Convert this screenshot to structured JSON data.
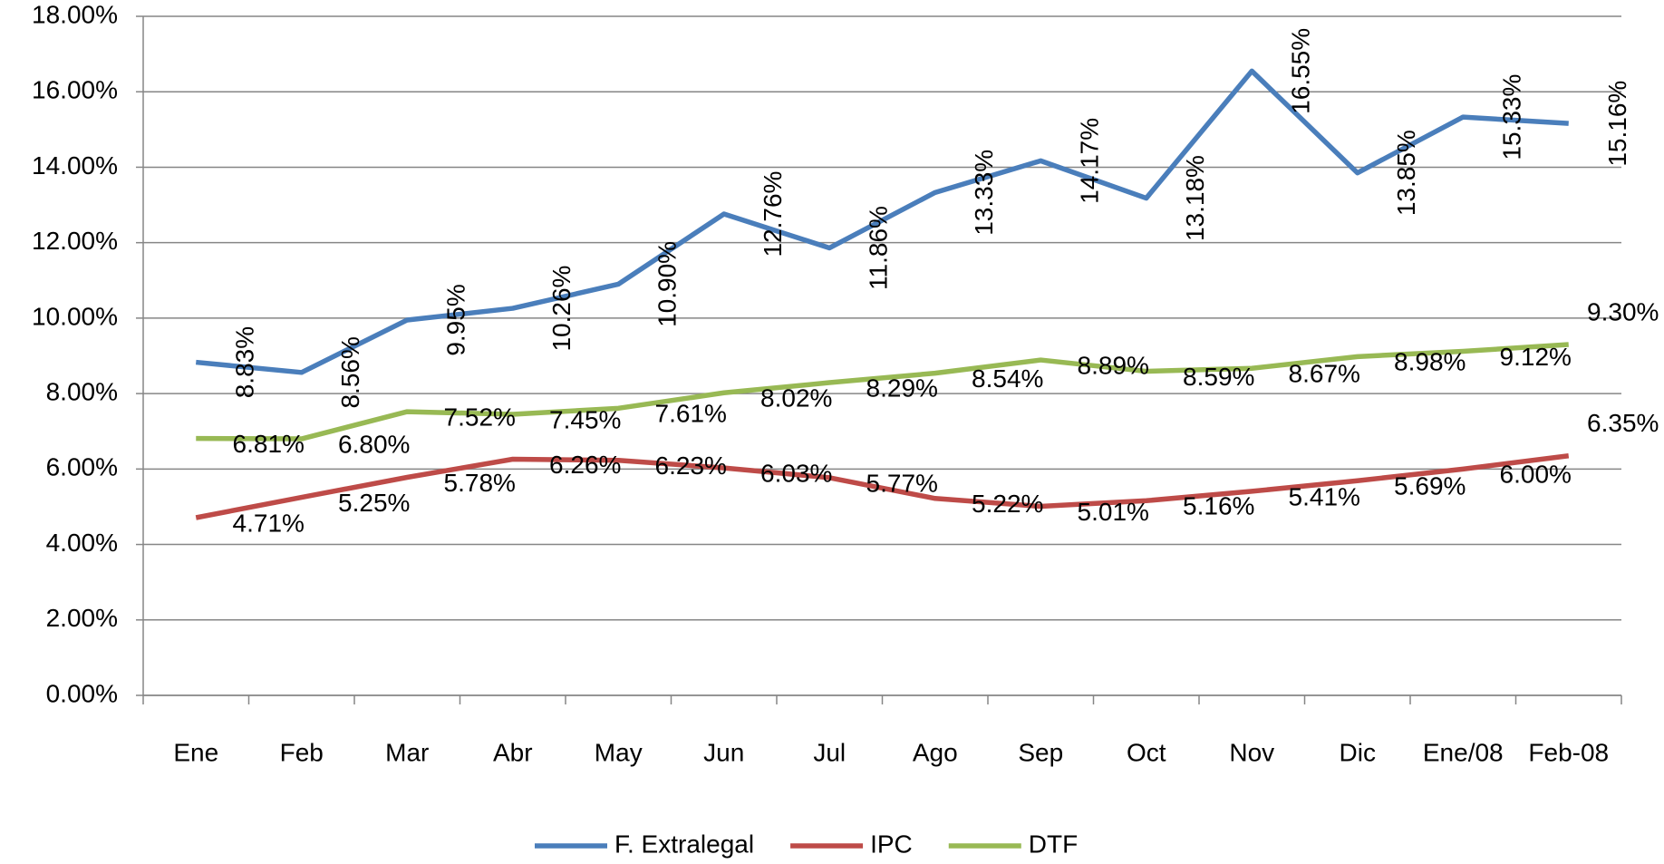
{
  "chart_data": {
    "type": "line",
    "categories": [
      "Ene",
      "Feb",
      "Mar",
      "Abr",
      "May",
      "Jun",
      "Jul",
      "Ago",
      "Sep",
      "Oct",
      "Nov",
      "Dic",
      "Ene/08",
      "Feb-08"
    ],
    "series": [
      {
        "name": "F. Extralegal",
        "color": "#4a7ebb",
        "values": [
          8.83,
          8.56,
          9.95,
          10.26,
          10.9,
          12.76,
          11.86,
          13.33,
          14.17,
          13.18,
          16.55,
          13.85,
          15.33,
          15.16
        ],
        "value_labels": [
          "8.83%",
          "8.56%",
          "9.95%",
          "10.26%",
          "10.90%",
          "12.76%",
          "11.86%",
          "13.33%",
          "14.17%",
          "13.18%",
          "16.55%",
          "13.85%",
          "15.33%",
          "15.16%"
        ]
      },
      {
        "name": "IPC",
        "color": "#be4b48",
        "values": [
          4.71,
          5.25,
          5.78,
          6.26,
          6.23,
          6.03,
          5.77,
          5.22,
          5.01,
          5.16,
          5.41,
          5.69,
          6.0,
          6.35
        ],
        "value_labels": [
          "4.71%",
          "5.25%",
          "5.78%",
          "6.26%",
          "6.23%",
          "6.03%",
          "5.77%",
          "5.22%",
          "5.01%",
          "5.16%",
          "5.41%",
          "5.69%",
          "6.00%",
          "6.35%"
        ]
      },
      {
        "name": "DTF",
        "color": "#98b954",
        "values": [
          6.81,
          6.8,
          7.52,
          7.45,
          7.61,
          8.02,
          8.29,
          8.54,
          8.89,
          8.59,
          8.67,
          8.98,
          9.12,
          9.3
        ],
        "value_labels": [
          "6.81%",
          "6.80%",
          "7.52%",
          "7.45%",
          "7.61%",
          "8.02%",
          "8.29%",
          "8.54%",
          "8.89%",
          "8.59%",
          "8.67%",
          "8.98%",
          "9.12%",
          "9.30%"
        ]
      }
    ],
    "ylim": [
      0,
      18
    ],
    "yticks": [
      {
        "value": 0,
        "label": "0.00%"
      },
      {
        "value": 2,
        "label": "2.00%"
      },
      {
        "value": 4,
        "label": "4.00%"
      },
      {
        "value": 6,
        "label": "6.00%"
      },
      {
        "value": 8,
        "label": "8.00%"
      },
      {
        "value": 10,
        "label": "10.00%"
      },
      {
        "value": 12,
        "label": "12.00%"
      },
      {
        "value": 14,
        "label": "14.00%"
      },
      {
        "value": 16,
        "label": "16.00%"
      },
      {
        "value": 18,
        "label": "18.00%"
      }
    ],
    "grid": true,
    "legend": "bottom"
  }
}
